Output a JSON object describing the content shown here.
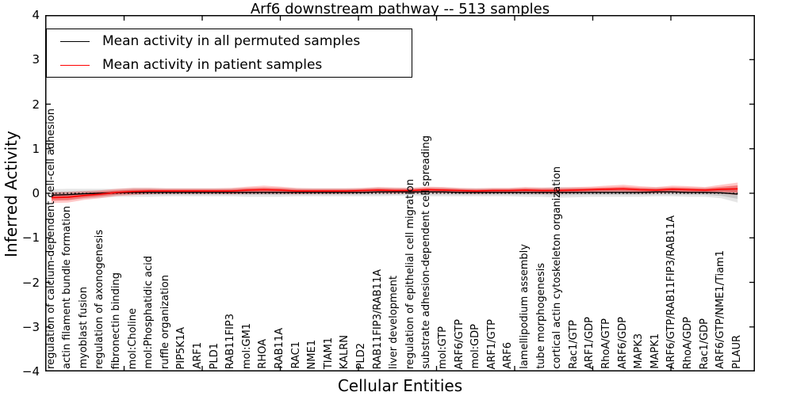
{
  "title": "Arf6 downstream pathway -- 513 samples",
  "axes": {
    "ylabel": "Inferred Activity",
    "xlabel": "Cellular Entities",
    "yticks": [
      "4",
      "3",
      "2",
      "1",
      "0",
      "−1",
      "−2",
      "−3",
      "−4"
    ]
  },
  "legend": [
    {
      "label": "Mean activity in all permuted samples",
      "color": "#000000"
    },
    {
      "label": "Mean activity in patient samples",
      "color": "#ff0000"
    }
  ],
  "colors": {
    "permuted_line": "#000000",
    "patient_line": "#ff0000",
    "permuted_band": "#000000",
    "patient_band": "#ff0000",
    "zero_line": "#000000"
  },
  "chart_data": {
    "type": "line",
    "title": "Arf6 downstream pathway -- 513 samples",
    "xlabel": "Cellular Entities",
    "ylabel": "Inferred Activity",
    "ylim": [
      -4,
      4
    ],
    "grid": false,
    "legend_position": "upper left",
    "zero_reference_line": 0,
    "categories": [
      "regulation of calcium-dependent cell-cell adhesion",
      "actin filament bundle formation",
      "myoblast fusion",
      "regulation of axonogenesis",
      "fibronectin binding",
      "mol:Choline",
      "mol:Phosphatidic acid",
      "ruffle organization",
      "PIP5K1A",
      "ARF1",
      "PLD1",
      "RAB11FIP3",
      "mol:GM1",
      "RHOA",
      "RAB11A",
      "RAC1",
      "NME1",
      "TIAM1",
      "KALRN",
      "PLD2",
      "RAB11FIP3/RAB11A",
      "liver development",
      "regulation of epithelial cell migration",
      "substrate adhesion-dependent cell spreading",
      "mol:GTP",
      "ARF6/GTP",
      "mol:GDP",
      "ARF1/GTP",
      "ARF6",
      "lamellipodium assembly",
      "tube morphogenesis",
      "cortical actin cytoskeleton organization",
      "Rac1/GTP",
      "ARF1/GDP",
      "RhoA/GTP",
      "ARF6/GDP",
      "MAPK3",
      "MAPK1",
      "ARF6/GTP/RAB11FIP3/RAB11A",
      "RhoA/GDP",
      "Rac1/GDP",
      "ARF6/GTP/NME1/Tiam1",
      "PLAUR"
    ],
    "series": [
      {
        "name": "Mean activity in all permuted samples",
        "color": "#000000",
        "values": [
          -0.04,
          -0.03,
          -0.01,
          0.0,
          0.01,
          0.02,
          0.02,
          0.02,
          0.02,
          0.02,
          0.02,
          0.02,
          0.02,
          0.02,
          0.02,
          0.02,
          0.02,
          0.02,
          0.02,
          0.02,
          0.03,
          0.03,
          0.03,
          0.03,
          0.03,
          0.02,
          0.02,
          0.02,
          0.02,
          0.02,
          0.02,
          0.02,
          0.02,
          0.02,
          0.02,
          0.02,
          0.02,
          0.03,
          0.03,
          0.02,
          0.02,
          0.01,
          -0.02
        ],
        "band_halfwidth": [
          0.13,
          0.13,
          0.11,
          0.1,
          0.09,
          0.1,
          0.1,
          0.09,
          0.09,
          0.09,
          0.09,
          0.09,
          0.1,
          0.1,
          0.1,
          0.09,
          0.09,
          0.09,
          0.09,
          0.09,
          0.1,
          0.09,
          0.09,
          0.1,
          0.1,
          0.09,
          0.09,
          0.09,
          0.09,
          0.1,
          0.1,
          0.12,
          0.11,
          0.1,
          0.1,
          0.1,
          0.1,
          0.1,
          0.1,
          0.1,
          0.1,
          0.12,
          0.19
        ]
      },
      {
        "name": "Mean activity in patient samples",
        "color": "#ff0000",
        "values": [
          -0.1,
          -0.09,
          -0.05,
          -0.02,
          0.02,
          0.04,
          0.05,
          0.05,
          0.05,
          0.05,
          0.05,
          0.05,
          0.07,
          0.08,
          0.07,
          0.05,
          0.05,
          0.05,
          0.05,
          0.06,
          0.07,
          0.06,
          0.06,
          0.08,
          0.07,
          0.06,
          0.05,
          0.06,
          0.06,
          0.07,
          0.06,
          0.06,
          0.07,
          0.08,
          0.09,
          0.1,
          0.08,
          0.07,
          0.09,
          0.08,
          0.07,
          0.09,
          0.1
        ],
        "band_halfwidth": [
          0.12,
          0.12,
          0.1,
          0.09,
          0.08,
          0.08,
          0.07,
          0.06,
          0.06,
          0.06,
          0.06,
          0.07,
          0.08,
          0.09,
          0.08,
          0.07,
          0.06,
          0.06,
          0.06,
          0.06,
          0.07,
          0.07,
          0.06,
          0.07,
          0.07,
          0.06,
          0.06,
          0.06,
          0.06,
          0.07,
          0.07,
          0.07,
          0.07,
          0.07,
          0.08,
          0.09,
          0.08,
          0.07,
          0.08,
          0.08,
          0.07,
          0.1,
          0.14
        ]
      }
    ]
  }
}
